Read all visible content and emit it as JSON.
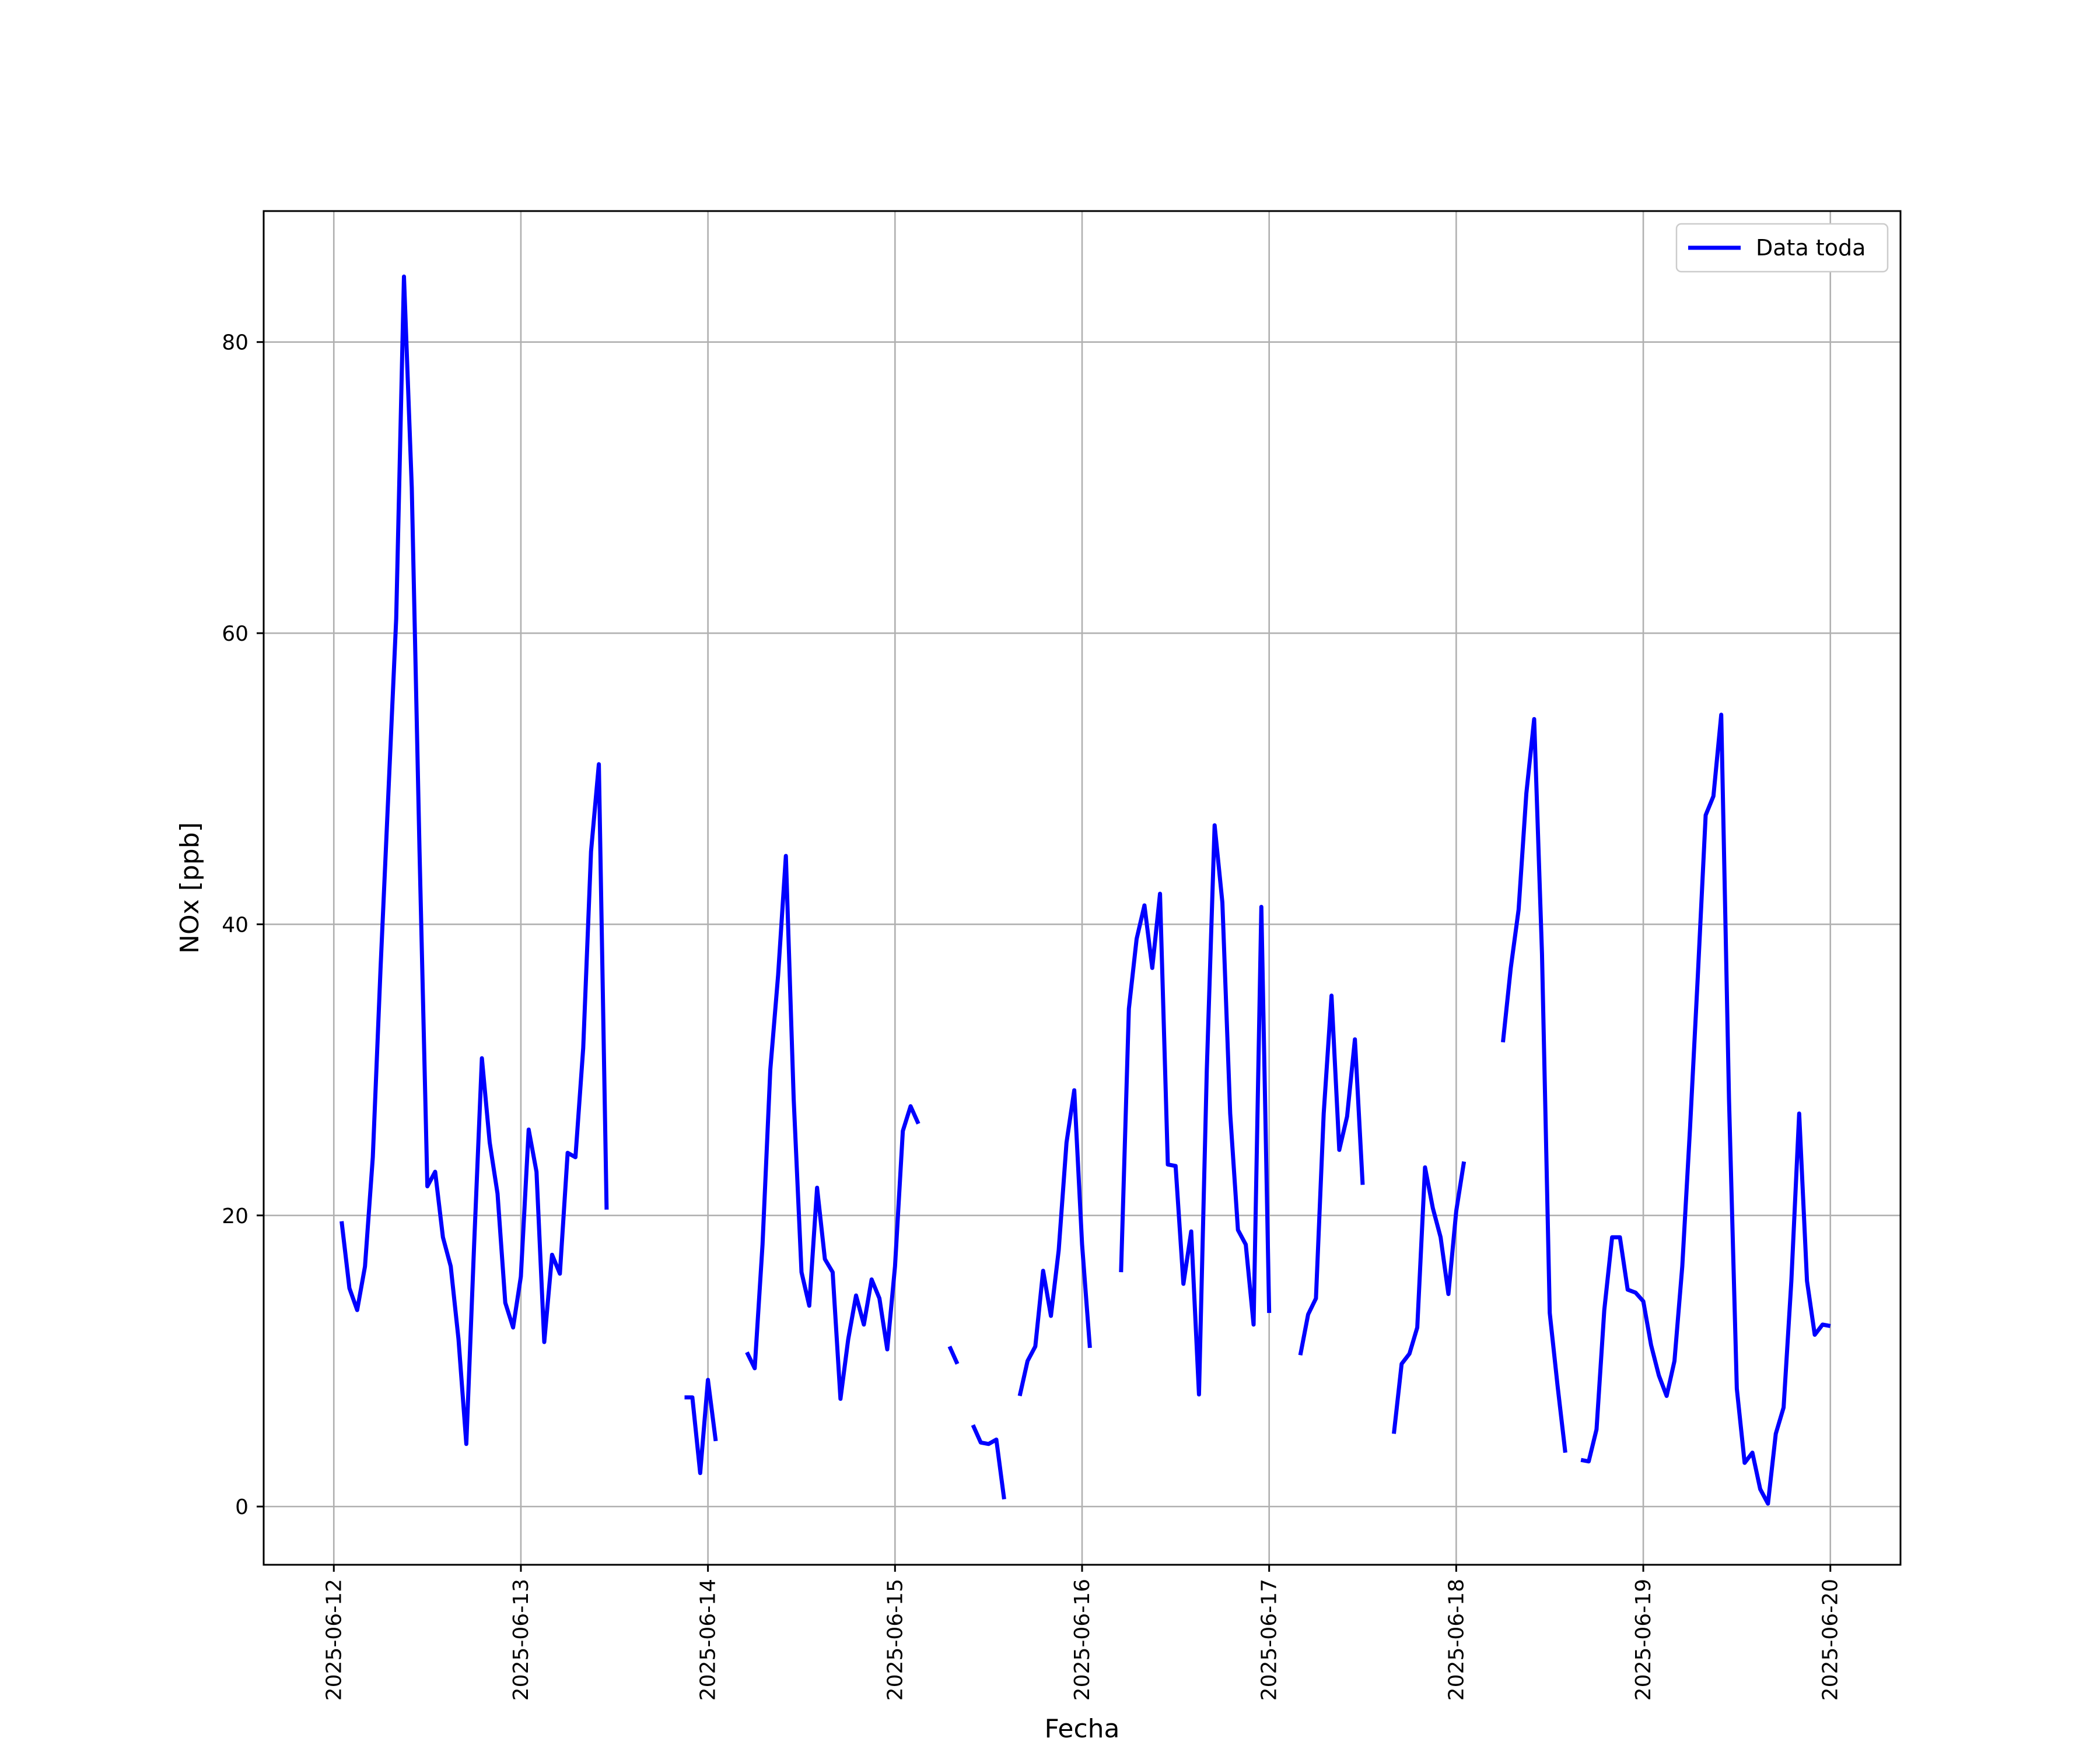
{
  "chart_data": {
    "type": "line",
    "title": "",
    "xlabel": "Fecha",
    "ylabel": "NOx [ppb]",
    "ylim": [
      -4.0,
      89.0
    ],
    "xlim_days": [
      "2025-06-11T15:00",
      "2025-06-20T09:00"
    ],
    "grid": true,
    "legend_location": "upper right",
    "x_tick_labels": [
      "2025-06-12",
      "2025-06-13",
      "2025-06-14",
      "2025-06-15",
      "2025-06-16",
      "2025-06-17",
      "2025-06-18",
      "2025-06-19",
      "2025-06-20"
    ],
    "y_tick_labels": [
      "0",
      "20",
      "40",
      "60",
      "80"
    ],
    "y_ticks": [
      0,
      20,
      40,
      60,
      80
    ],
    "series": [
      {
        "name": "Data toda",
        "color": "#0000ff",
        "segments": [
          [
            [
              "2025-06-12T01:00",
              19.6
            ],
            [
              "2025-06-12T02:00",
              15.0
            ],
            [
              "2025-06-12T03:00",
              13.5
            ],
            [
              "2025-06-12T04:00",
              16.5
            ],
            [
              "2025-06-12T05:00",
              24.0
            ],
            [
              "2025-06-12T06:00",
              37.0
            ],
            [
              "2025-06-12T07:00",
              49.0
            ],
            [
              "2025-06-12T08:00",
              61.0
            ],
            [
              "2025-06-12T09:00",
              84.5
            ],
            [
              "2025-06-12T10:00",
              70.0
            ],
            [
              "2025-06-12T11:00",
              45.0
            ],
            [
              "2025-06-12T12:00",
              22.0
            ],
            [
              "2025-06-12T13:00",
              23.0
            ],
            [
              "2025-06-12T14:00",
              18.5
            ],
            [
              "2025-06-12T15:00",
              16.5
            ],
            [
              "2025-06-12T16:00",
              11.5
            ],
            [
              "2025-06-12T17:00",
              4.3
            ],
            [
              "2025-06-12T18:00",
              18.0
            ],
            [
              "2025-06-12T19:00",
              30.8
            ],
            [
              "2025-06-12T20:00",
              25.0
            ],
            [
              "2025-06-12T21:00",
              21.5
            ],
            [
              "2025-06-12T22:00",
              14.0
            ],
            [
              "2025-06-12T23:00",
              12.3
            ],
            [
              "2025-06-13T00:00",
              15.8
            ],
            [
              "2025-06-13T01:00",
              25.9
            ],
            [
              "2025-06-13T02:00",
              23.0
            ],
            [
              "2025-06-13T03:00",
              11.3
            ],
            [
              "2025-06-13T04:00",
              17.3
            ],
            [
              "2025-06-13T05:00",
              16.0
            ],
            [
              "2025-06-13T06:00",
              24.3
            ],
            [
              "2025-06-13T07:00",
              24.0
            ],
            [
              "2025-06-13T08:00",
              31.5
            ],
            [
              "2025-06-13T09:00",
              45.0
            ],
            [
              "2025-06-13T10:00",
              51.0
            ],
            [
              "2025-06-13T11:00",
              20.4
            ]
          ],
          [
            [
              "2025-06-13T21:00",
              7.5
            ],
            [
              "2025-06-13T22:00",
              7.5
            ],
            [
              "2025-06-13T23:00",
              2.3
            ],
            [
              "2025-06-14T00:00",
              8.7
            ],
            [
              "2025-06-14T01:00",
              4.5
            ]
          ],
          [
            [
              "2025-06-14T05:00",
              10.6
            ],
            [
              "2025-06-14T06:00",
              9.5
            ],
            [
              "2025-06-14T07:00",
              18.0
            ],
            [
              "2025-06-14T08:00",
              30.0
            ],
            [
              "2025-06-14T09:00",
              36.5
            ],
            [
              "2025-06-14T10:00",
              44.7
            ],
            [
              "2025-06-14T11:00",
              28.0
            ],
            [
              "2025-06-14T12:00",
              16.1
            ],
            [
              "2025-06-14T13:00",
              13.8
            ],
            [
              "2025-06-14T14:00",
              21.9
            ],
            [
              "2025-06-14T15:00",
              17.0
            ],
            [
              "2025-06-14T16:00",
              16.1
            ],
            [
              "2025-06-14T17:00",
              7.4
            ],
            [
              "2025-06-14T18:00",
              11.5
            ],
            [
              "2025-06-14T19:00",
              14.5
            ],
            [
              "2025-06-14T20:00",
              12.5
            ],
            [
              "2025-06-14T21:00",
              15.6
            ],
            [
              "2025-06-14T22:00",
              14.3
            ],
            [
              "2025-06-14T23:00",
              10.8
            ],
            [
              "2025-06-15T00:00",
              16.5
            ],
            [
              "2025-06-15T01:00",
              25.8
            ],
            [
              "2025-06-15T02:00",
              27.5
            ],
            [
              "2025-06-15T03:00",
              26.3
            ]
          ],
          [
            [
              "2025-06-15T07:00",
              11.0
            ],
            [
              "2025-06-15T08:00",
              9.8
            ]
          ],
          [
            [
              "2025-06-15T10:00",
              5.6
            ],
            [
              "2025-06-15T11:00",
              4.4
            ],
            [
              "2025-06-15T12:00",
              4.3
            ],
            [
              "2025-06-15T13:00",
              4.6
            ],
            [
              "2025-06-15T14:00",
              0.5
            ]
          ],
          [
            [
              "2025-06-15T16:00",
              7.6
            ],
            [
              "2025-06-15T17:00",
              10.0
            ],
            [
              "2025-06-15T18:00",
              11.0
            ],
            [
              "2025-06-15T19:00",
              16.2
            ],
            [
              "2025-06-15T20:00",
              13.1
            ],
            [
              "2025-06-15T21:00",
              17.6
            ],
            [
              "2025-06-15T22:00",
              25.0
            ],
            [
              "2025-06-15T23:00",
              28.6
            ],
            [
              "2025-06-16T00:00",
              18.0
            ],
            [
              "2025-06-16T01:00",
              10.9
            ]
          ],
          [
            [
              "2025-06-16T05:00",
              16.1
            ],
            [
              "2025-06-16T06:00",
              34.2
            ],
            [
              "2025-06-16T07:00",
              39.0
            ],
            [
              "2025-06-16T08:00",
              41.3
            ],
            [
              "2025-06-16T09:00",
              37.0
            ],
            [
              "2025-06-16T10:00",
              42.1
            ],
            [
              "2025-06-16T11:00",
              23.5
            ],
            [
              "2025-06-16T12:00",
              23.4
            ],
            [
              "2025-06-16T13:00",
              15.3
            ],
            [
              "2025-06-16T14:00",
              18.9
            ],
            [
              "2025-06-16T15:00",
              7.7
            ],
            [
              "2025-06-16T16:00",
              30.0
            ],
            [
              "2025-06-16T17:00",
              46.8
            ],
            [
              "2025-06-16T18:00",
              41.5
            ],
            [
              "2025-06-16T19:00",
              27.0
            ],
            [
              "2025-06-16T20:00",
              19.0
            ],
            [
              "2025-06-16T21:00",
              18.0
            ],
            [
              "2025-06-16T22:00",
              12.5
            ],
            [
              "2025-06-16T23:00",
              41.2
            ],
            [
              "2025-06-17T00:00",
              13.3
            ]
          ],
          [
            [
              "2025-06-17T04:00",
              10.4
            ],
            [
              "2025-06-17T05:00",
              13.2
            ],
            [
              "2025-06-17T06:00",
              14.3
            ],
            [
              "2025-06-17T07:00",
              27.0
            ],
            [
              "2025-06-17T08:00",
              35.1
            ],
            [
              "2025-06-17T09:00",
              24.5
            ],
            [
              "2025-06-17T10:00",
              26.8
            ],
            [
              "2025-06-17T11:00",
              32.1
            ],
            [
              "2025-06-17T12:00",
              22.1
            ]
          ],
          [
            [
              "2025-06-17T16:00",
              5.0
            ],
            [
              "2025-06-17T17:00",
              9.8
            ],
            [
              "2025-06-17T18:00",
              10.5
            ],
            [
              "2025-06-17T19:00",
              12.3
            ],
            [
              "2025-06-17T20:00",
              23.3
            ],
            [
              "2025-06-17T21:00",
              20.5
            ],
            [
              "2025-06-17T22:00",
              18.5
            ],
            [
              "2025-06-17T23:00",
              14.6
            ],
            [
              "2025-06-18T00:00",
              20.3
            ],
            [
              "2025-06-18T01:00",
              23.7
            ]
          ],
          [
            [
              "2025-06-18T06:00",
              31.9
            ],
            [
              "2025-06-18T07:00",
              37.0
            ],
            [
              "2025-06-18T08:00",
              41.0
            ],
            [
              "2025-06-18T09:00",
              49.0
            ],
            [
              "2025-06-18T10:00",
              54.1
            ],
            [
              "2025-06-18T11:00",
              38.0
            ],
            [
              "2025-06-18T12:00",
              13.3
            ],
            [
              "2025-06-18T13:00",
              8.3
            ],
            [
              "2025-06-18T14:00",
              3.7
            ]
          ],
          [
            [
              "2025-06-18T16:00",
              3.2
            ],
            [
              "2025-06-18T17:00",
              3.1
            ],
            [
              "2025-06-18T18:00",
              5.3
            ],
            [
              "2025-06-18T19:00",
              13.5
            ],
            [
              "2025-06-18T20:00",
              18.5
            ],
            [
              "2025-06-18T21:00",
              18.5
            ],
            [
              "2025-06-18T22:00",
              14.9
            ],
            [
              "2025-06-18T23:00",
              14.7
            ],
            [
              "2025-06-19T00:00",
              14.1
            ],
            [
              "2025-06-19T01:00",
              11.1
            ],
            [
              "2025-06-19T02:00",
              9.0
            ],
            [
              "2025-06-19T03:00",
              7.6
            ],
            [
              "2025-06-19T04:00",
              10.0
            ],
            [
              "2025-06-19T05:00",
              16.5
            ],
            [
              "2025-06-19T06:00",
              26.0
            ],
            [
              "2025-06-19T07:00",
              36.5
            ],
            [
              "2025-06-19T08:00",
              47.5
            ],
            [
              "2025-06-19T09:00",
              48.8
            ],
            [
              "2025-06-19T10:00",
              54.4
            ],
            [
              "2025-06-19T11:00",
              28.0
            ],
            [
              "2025-06-19T12:00",
              8.1
            ],
            [
              "2025-06-19T13:00",
              3.0
            ],
            [
              "2025-06-19T14:00",
              3.7
            ],
            [
              "2025-06-19T15:00",
              1.2
            ],
            [
              "2025-06-19T16:00",
              0.2
            ],
            [
              "2025-06-19T17:00",
              5.0
            ],
            [
              "2025-06-19T18:00",
              6.8
            ],
            [
              "2025-06-19T19:00",
              15.5
            ],
            [
              "2025-06-19T20:00",
              27.0
            ],
            [
              "2025-06-19T21:00",
              15.5
            ],
            [
              "2025-06-19T22:00",
              11.8
            ],
            [
              "2025-06-19T23:00",
              12.5
            ],
            [
              "2025-06-20T00:00",
              12.4
            ]
          ]
        ]
      }
    ]
  }
}
